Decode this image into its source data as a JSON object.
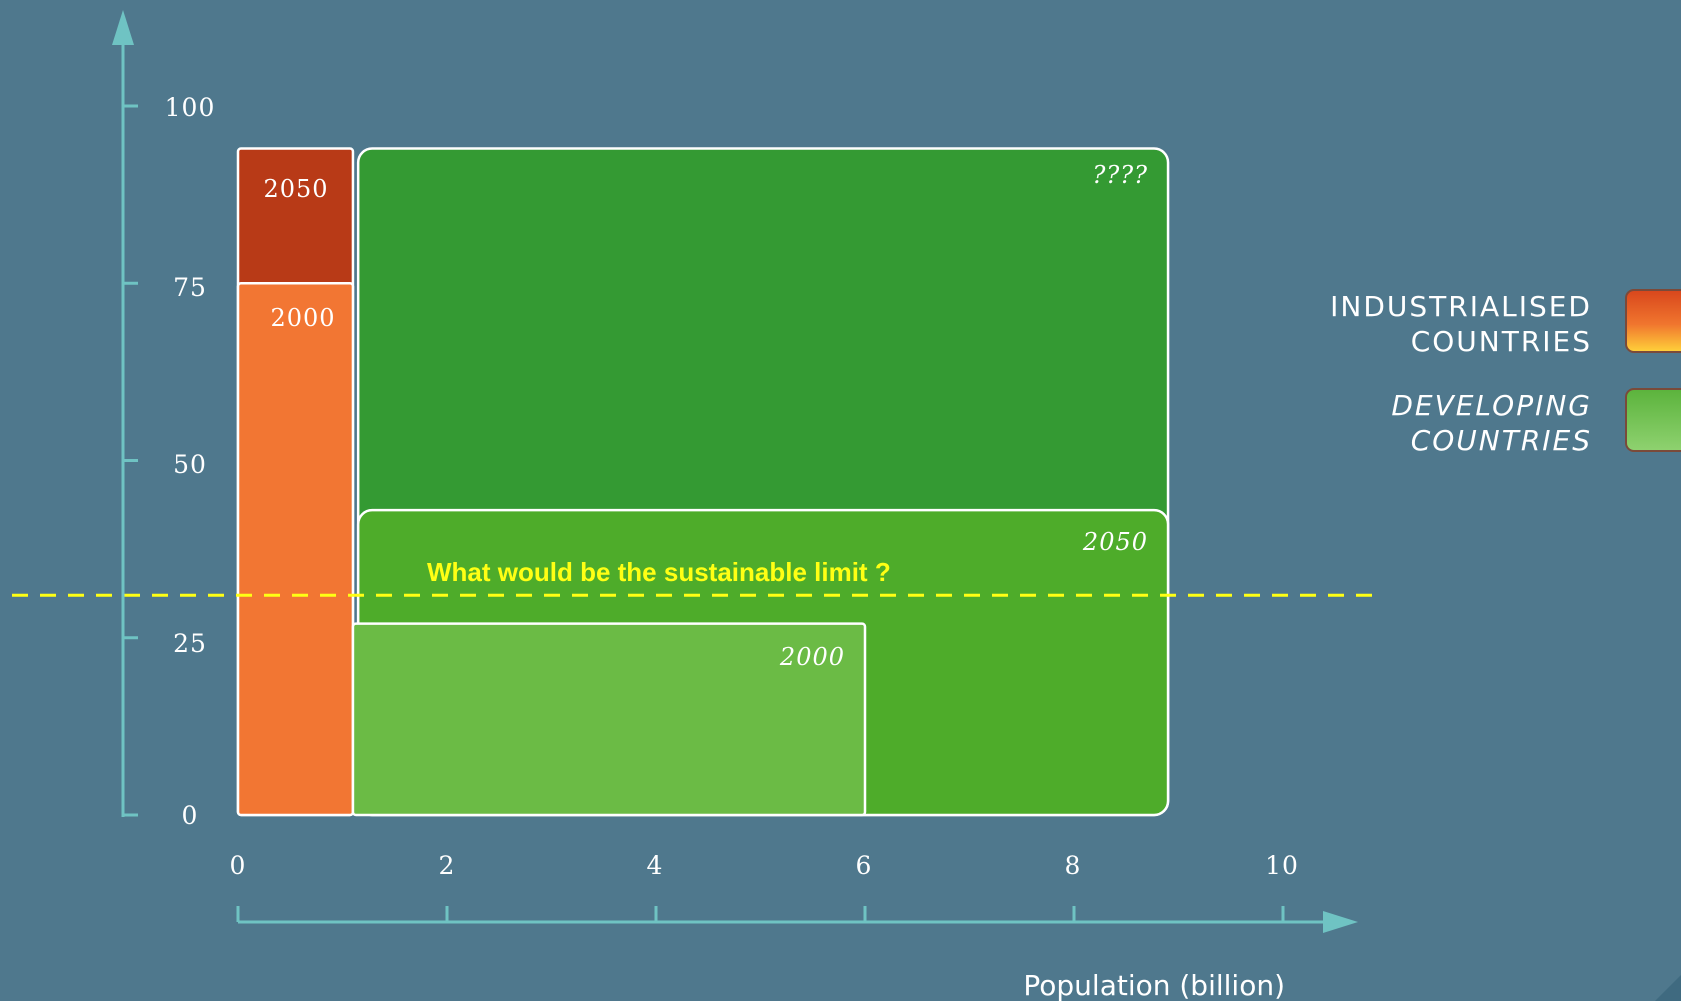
{
  "chart_data": {
    "type": "bar",
    "title": "",
    "xlabel": "Population (billion)",
    "ylabel": "",
    "xlim": [
      0,
      10
    ],
    "ylim": [
      0,
      100
    ],
    "x_ticks": [
      "0",
      "2",
      "4",
      "6",
      "8",
      "10"
    ],
    "y_ticks": [
      "0",
      "25",
      "50",
      "75",
      "100"
    ],
    "series": [
      {
        "name": "INDUSTRIALISED COUNTRIES",
        "bars": [
          {
            "label": "2050",
            "x_start": 0,
            "x_end": 1.1,
            "value": 94
          },
          {
            "label": "2000",
            "x_start": 0,
            "x_end": 1.1,
            "value": 75
          }
        ]
      },
      {
        "name": "DEVELOPING COUNTRIES",
        "bars": [
          {
            "label": "????",
            "x_start": 1.15,
            "x_end": 8.9,
            "value": 94
          },
          {
            "label": "2050",
            "x_start": 1.15,
            "x_end": 8.9,
            "value": 43
          },
          {
            "label": "2000",
            "x_start": 1.1,
            "x_end": 6,
            "value": 27
          }
        ]
      }
    ],
    "reference_line": {
      "label": "What would be the sustainable limit ?",
      "value": 31,
      "style": "dashed"
    },
    "legend": {
      "position": "right",
      "entries": [
        {
          "lines": [
            "INDUSTRIALISED",
            "COUNTRIES"
          ]
        },
        {
          "lines": [
            "DEVELOPING",
            "COUNTRIES"
          ]
        }
      ]
    },
    "grid": false
  },
  "colors": {
    "background": "#4f788d",
    "axis": "#6fc3c3",
    "industrialised_2050": "#b83a17",
    "industrialised_2000": "#f27633",
    "developing_unknown": "#349a33",
    "developing_2050": "#4eac2a",
    "developing_2000": "#6bbb45",
    "limit_line": "#ffff14"
  }
}
